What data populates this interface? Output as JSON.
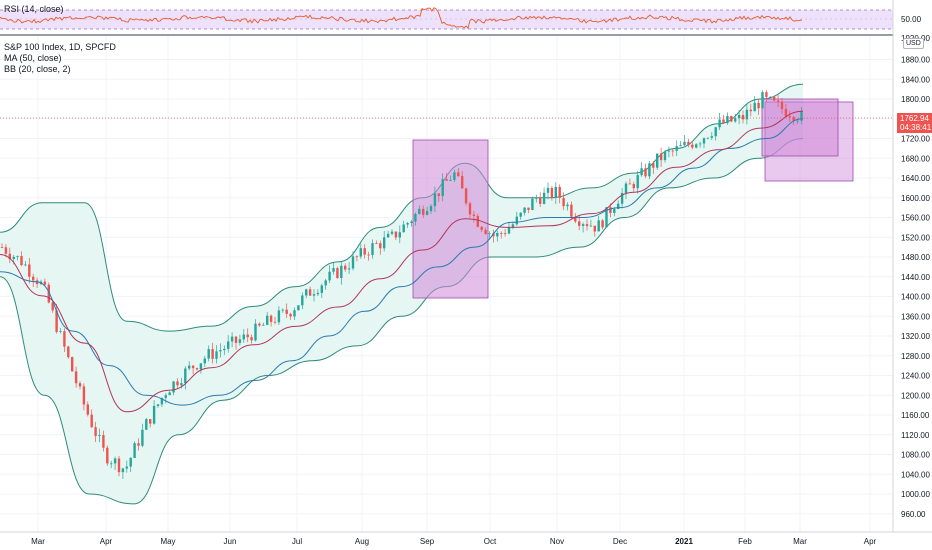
{
  "rsi_panel": {
    "label": "RSI (14, close)",
    "level_label": "50.00"
  },
  "main_panel": {
    "symbol_line": "S&P 100 Index, 1D, SPCFD",
    "ma_line": "MA (50, close)",
    "bb_line": "BB (20, close, 2)",
    "currency": "USD",
    "top_partial_tick": "1920.00",
    "price_ticks": [
      "1880.00",
      "1840.00",
      "1800.00",
      "1760.00",
      "1720.00",
      "1680.00",
      "1640.00",
      "1600.00",
      "1560.00",
      "1520.00",
      "1480.00",
      "1440.00",
      "1400.00",
      "1360.00",
      "1320.00",
      "1280.00",
      "1240.00",
      "1200.00",
      "1160.00",
      "1120.00",
      "1080.00",
      "1040.00",
      "1000.00",
      "960.00"
    ],
    "current_price": "1762.94",
    "countdown": "04:38:41"
  },
  "time_axis": {
    "labels": [
      "Mar",
      "Apr",
      "May",
      "Jun",
      "Jul",
      "Aug",
      "Sep",
      "Oct",
      "Nov",
      "Dec",
      "2021",
      "Feb",
      "Mar",
      "Apr"
    ]
  },
  "colors": {
    "up_candle": "#26a69a",
    "down_candle": "#ef5350",
    "ma_line": "#2a7ab0",
    "bb_basis": "#b2365a",
    "bb_band": "#2e8b7a",
    "bb_fill": "#e6f6f3",
    "rsi_line": "#e85a28",
    "rsi_fill": "#ede1fb",
    "rect_fill": "#cf88d9",
    "rect_border": "#a14aad",
    "price_tag": "#ef5350"
  },
  "chart_data": {
    "type": "candlestick",
    "title": "S&P 100 Index, 1D, SPCFD",
    "ylim": [
      950,
      1930
    ],
    "x": [
      "Mar",
      "Apr",
      "May",
      "Jun",
      "Jul",
      "Aug",
      "Sep",
      "Oct",
      "Nov",
      "Dec",
      "2021",
      "Feb",
      "Mar",
      "Apr"
    ],
    "close_path": [
      1500,
      1470,
      1420,
      1300,
      1180,
      1080,
      1050,
      1140,
      1210,
      1250,
      1280,
      1300,
      1320,
      1350,
      1370,
      1410,
      1440,
      1470,
      1500,
      1520,
      1560,
      1600,
      1650,
      1560,
      1520,
      1550,
      1600,
      1610,
      1560,
      1540,
      1600,
      1640,
      1680,
      1700,
      1720,
      1750,
      1760,
      1800,
      1780,
      1762.94
    ],
    "ma_50": [
      1450,
      1430,
      1330,
      1260,
      1200,
      1180,
      1200,
      1230,
      1270,
      1320,
      1370,
      1420,
      1460,
      1500,
      1550,
      1560,
      1560,
      1580,
      1620,
      1660,
      1700,
      1720,
      1760
    ],
    "bb_upper": [
      1530,
      1590,
      1590,
      1350,
      1330,
      1340,
      1380,
      1420,
      1470,
      1540,
      1600,
      1670,
      1600,
      1600,
      1620,
      1650,
      1700,
      1750,
      1800,
      1830
    ],
    "bb_lower": [
      1440,
      1200,
      1000,
      980,
      1120,
      1190,
      1240,
      1270,
      1300,
      1360,
      1420,
      1480,
      1480,
      1500,
      1560,
      1620,
      1640,
      1680,
      1720
    ],
    "rsi_level": 50
  }
}
